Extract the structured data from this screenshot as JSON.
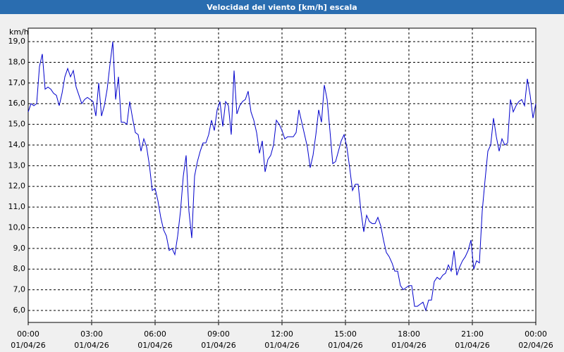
{
  "chart_data": {
    "type": "line",
    "title": "Velocidad del viento [km/h] escala",
    "y_label": "km/h",
    "color": "#0000cc",
    "grid": true,
    "xlim": [
      0,
      1440
    ],
    "xticks": [
      {
        "value": 0,
        "label": "00:00",
        "date": "01/04/26"
      },
      {
        "value": 180,
        "label": "03:00",
        "date": "01/04/26"
      },
      {
        "value": 360,
        "label": "06:00",
        "date": "01/04/26"
      },
      {
        "value": 540,
        "label": "09:00",
        "date": "01/04/26"
      },
      {
        "value": 720,
        "label": "12:00",
        "date": "01/04/26"
      },
      {
        "value": 900,
        "label": "15:00",
        "date": "01/04/26"
      },
      {
        "value": 1080,
        "label": "18:00",
        "date": "01/04/26"
      },
      {
        "value": 1260,
        "label": "21:00",
        "date": "01/04/26"
      },
      {
        "value": 1440,
        "label": "00:00",
        "date": "02/04/26"
      }
    ],
    "ylim": [
      5.42,
      19.65
    ],
    "yticks": [
      {
        "value": 6,
        "label": "6,0"
      },
      {
        "value": 7,
        "label": "7,0"
      },
      {
        "value": 8,
        "label": "8,0"
      },
      {
        "value": 9,
        "label": "9,0"
      },
      {
        "value": 10,
        "label": "10,0"
      },
      {
        "value": 11,
        "label": "11,0"
      },
      {
        "value": 12,
        "label": "12,0"
      },
      {
        "value": 13,
        "label": "13,0"
      },
      {
        "value": 14,
        "label": "14,0"
      },
      {
        "value": 15,
        "label": "15,0"
      },
      {
        "value": 16,
        "label": "16,0"
      },
      {
        "value": 17,
        "label": "17,0"
      },
      {
        "value": 18,
        "label": "18,0"
      },
      {
        "value": 19,
        "label": "19,0"
      }
    ],
    "x": [
      0,
      8,
      16,
      24,
      32,
      40,
      48,
      56,
      64,
      72,
      80,
      88,
      96,
      104,
      112,
      120,
      128,
      136,
      144,
      152,
      160,
      168,
      176,
      184,
      192,
      200,
      208,
      216,
      224,
      232,
      240,
      248,
      256,
      264,
      272,
      280,
      288,
      296,
      304,
      312,
      320,
      328,
      336,
      344,
      352,
      360,
      368,
      376,
      384,
      392,
      400,
      408,
      416,
      424,
      432,
      440,
      448,
      456,
      464,
      472,
      480,
      488,
      496,
      504,
      512,
      520,
      528,
      536,
      544,
      552,
      560,
      568,
      576,
      584,
      592,
      600,
      608,
      616,
      624,
      632,
      640,
      648,
      656,
      664,
      672,
      680,
      688,
      696,
      704,
      712,
      720,
      728,
      736,
      744,
      752,
      760,
      768,
      776,
      784,
      792,
      800,
      808,
      816,
      824,
      832,
      840,
      848,
      856,
      864,
      872,
      880,
      888,
      896,
      904,
      912,
      920,
      928,
      936,
      944,
      952,
      960,
      968,
      976,
      984,
      992,
      1000,
      1008,
      1016,
      1024,
      1032,
      1040,
      1048,
      1056,
      1064,
      1072,
      1080,
      1088,
      1096,
      1104,
      1112,
      1120,
      1128,
      1136,
      1144,
      1152,
      1160,
      1168,
      1176,
      1184,
      1192,
      1200,
      1208,
      1216,
      1224,
      1232,
      1240,
      1248,
      1256,
      1264,
      1272,
      1280,
      1288,
      1296,
      1304,
      1312,
      1320,
      1328,
      1336,
      1344,
      1352,
      1360,
      1368,
      1376,
      1384,
      1392,
      1400,
      1408,
      1416,
      1424,
      1432,
      1440
    ],
    "values": [
      15.6,
      16.0,
      15.9,
      16.0,
      17.8,
      18.4,
      16.7,
      16.8,
      16.7,
      16.5,
      16.4,
      15.9,
      16.5,
      17.3,
      17.7,
      17.3,
      17.6,
      16.8,
      16.4,
      16.0,
      16.2,
      16.3,
      16.2,
      16.1,
      15.4,
      17.0,
      15.4,
      15.9,
      16.7,
      17.9,
      19.0,
      16.2,
      17.3,
      15.1,
      15.1,
      15.0,
      16.1,
      15.3,
      14.6,
      14.5,
      13.7,
      14.3,
      13.9,
      13.0,
      11.8,
      11.9,
      11.3,
      10.5,
      9.9,
      9.6,
      8.9,
      9.0,
      8.7,
      9.6,
      10.8,
      12.5,
      13.5,
      10.8,
      9.5,
      12.5,
      13.2,
      13.7,
      14.1,
      14.1,
      14.5,
      15.2,
      14.7,
      15.7,
      16.1,
      14.9,
      16.1,
      15.9,
      14.5,
      17.6,
      15.5,
      15.9,
      16.1,
      16.2,
      16.6,
      15.6,
      15.2,
      14.6,
      13.6,
      14.2,
      12.7,
      13.3,
      13.5,
      14.0,
      15.2,
      15.0,
      14.7,
      14.3,
      14.4,
      14.4,
      14.4,
      14.6,
      15.7,
      15.1,
      14.5,
      13.9,
      12.9,
      13.5,
      14.5,
      15.7,
      15.1,
      16.9,
      16.2,
      14.7,
      13.1,
      13.2,
      13.7,
      14.2,
      14.5,
      13.9,
      12.9,
      11.8,
      12.1,
      12.1,
      10.8,
      9.8,
      10.6,
      10.3,
      10.2,
      10.2,
      10.5,
      10.1,
      9.4,
      8.8,
      8.6,
      8.3,
      7.9,
      7.9,
      7.2,
      7.0,
      7.1,
      7.2,
      7.2,
      6.2,
      6.2,
      6.3,
      6.4,
      6.0,
      6.5,
      6.5,
      7.4,
      7.6,
      7.5,
      7.7,
      7.8,
      8.2,
      7.9,
      8.9,
      7.7,
      8.1,
      8.4,
      8.6,
      8.9,
      9.4,
      8.0,
      8.4,
      8.3,
      10.8,
      12.3,
      13.7,
      14.0,
      15.3,
      14.4,
      13.7,
      14.3,
      14.0,
      14.1,
      16.2,
      15.6,
      15.9,
      16.1,
      16.2,
      15.9,
      17.2,
      16.4,
      15.3,
      16.0
    ]
  }
}
